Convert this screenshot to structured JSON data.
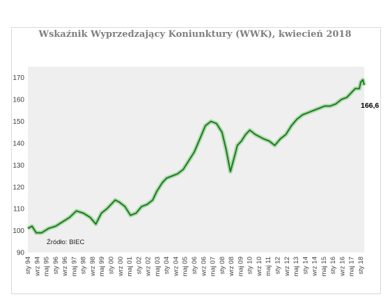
{
  "chart_data": {
    "type": "line",
    "title": "Wskaźnik Wyprzedzający Koniunktury (WWK),  kwiecień 2018",
    "ylim": [
      90,
      175
    ],
    "yticks": [
      90,
      100,
      110,
      120,
      130,
      140,
      150,
      160,
      170
    ],
    "grid": false,
    "xlabel": "",
    "ylabel": "",
    "x_tick_labels": [
      "sty 94",
      "wrz 94",
      "maj 95",
      "sty 96",
      "wrz 96",
      "maj 97",
      "sty 98",
      "wrz 98",
      "maj 99",
      "sty 00",
      "wrz 00",
      "maj 01",
      "sty 02",
      "wrz 02",
      "maj 03",
      "sty 04",
      "wrz 04",
      "maj 05",
      "sty 06",
      "wrz 06",
      "maj 07",
      "sty 08",
      "wrz 08",
      "maj 09",
      "sty 10",
      "wrz 10",
      "maj 11",
      "sty 12",
      "wrz 12",
      "maj 13",
      "sty 14",
      "wrz 14",
      "maj 15",
      "sty 16",
      "wrz 16",
      "maj 17",
      "sty 18"
    ],
    "series": [
      {
        "color": "#1e7a1e",
        "x": [
          1994.0,
          1994.3,
          1994.6,
          1995.0,
          1995.5,
          1996.0,
          1996.5,
          1997.0,
          1997.5,
          1998.0,
          1998.5,
          1998.9,
          1999.3,
          1999.7,
          2000.0,
          2000.3,
          2000.6,
          2001.0,
          2001.4,
          2001.8,
          2002.2,
          2002.6,
          2003.0,
          2003.3,
          2003.7,
          2004.0,
          2004.4,
          2004.8,
          2005.2,
          2005.6,
          2006.0,
          2006.4,
          2006.8,
          2007.2,
          2007.6,
          2008.0,
          2008.3,
          2008.6,
          2008.9,
          2009.1,
          2009.4,
          2009.7,
          2010.0,
          2010.4,
          2010.7,
          2011.0,
          2011.4,
          2011.8,
          2012.2,
          2012.6,
          2013.0,
          2013.4,
          2013.8,
          2014.2,
          2014.6,
          2015.0,
          2015.4,
          2015.8,
          2016.2,
          2016.6,
          2017.0,
          2017.3,
          2017.6,
          2017.9,
          2018.0,
          2018.15,
          2018.25
        ],
        "values": [
          101,
          102,
          99,
          99,
          101,
          102,
          104,
          106,
          109,
          108,
          106,
          103,
          108,
          110,
          112,
          114,
          113,
          111,
          107,
          108,
          111,
          112,
          114,
          118,
          122,
          124,
          125,
          126,
          128,
          132,
          136,
          142,
          148,
          150,
          149,
          145,
          137,
          127,
          134,
          139,
          141,
          144,
          146,
          144,
          143,
          142,
          141,
          139,
          142,
          144,
          148,
          151,
          153,
          154,
          155,
          156,
          157,
          157,
          158,
          160,
          161,
          163,
          165,
          165,
          168,
          169,
          166.6
        ]
      }
    ],
    "annotations": [
      "166,6",
      "Źródło: BIEC"
    ]
  }
}
